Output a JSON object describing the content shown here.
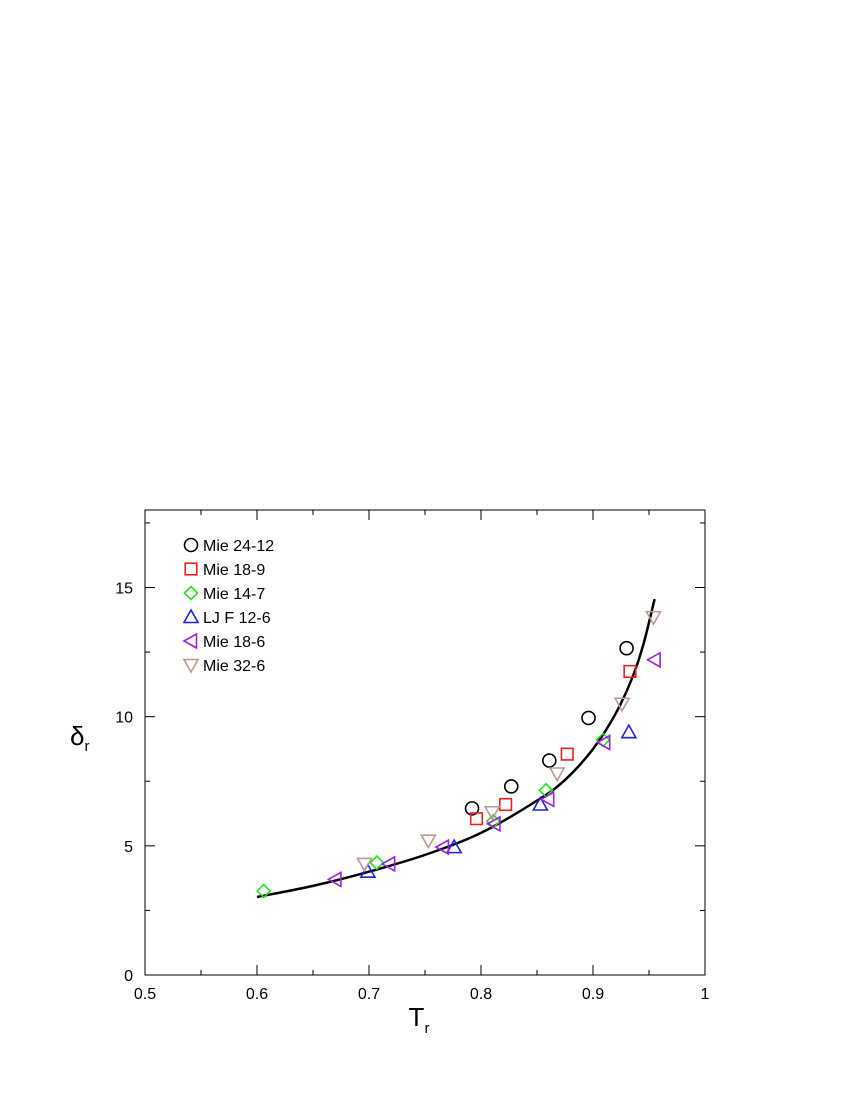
{
  "chart_data": {
    "type": "scatter",
    "xlabel": "T",
    "xlabel_subscript": "r",
    "ylabel": "δ",
    "ylabel_subscript": "r",
    "xlim": [
      0.5,
      1.0
    ],
    "ylim": [
      0,
      18
    ],
    "xticks": [
      "0.5",
      "0.6",
      "0.7",
      "0.8",
      "0.9",
      "1"
    ],
    "yticks": [
      "0",
      "5",
      "10",
      "15"
    ],
    "grid": false,
    "legend_position": "top-left",
    "series": [
      {
        "name": "Mie 24-12",
        "marker": "circle",
        "color": "#000000",
        "points": [
          [
            0.792,
            6.45
          ],
          [
            0.827,
            7.3
          ],
          [
            0.861,
            8.3
          ],
          [
            0.896,
            9.95
          ],
          [
            0.93,
            12.65
          ]
        ]
      },
      {
        "name": "Mie 18-9",
        "marker": "square",
        "color": "#e8211e",
        "points": [
          [
            0.796,
            6.05
          ],
          [
            0.822,
            6.6
          ],
          [
            0.877,
            8.55
          ],
          [
            0.933,
            11.75
          ]
        ]
      },
      {
        "name": "Mie 14-7",
        "marker": "diamond",
        "color": "#22e01d",
        "points": [
          [
            0.606,
            3.25
          ],
          [
            0.707,
            4.35
          ],
          [
            0.811,
            5.95
          ],
          [
            0.858,
            7.15
          ],
          [
            0.909,
            9.1
          ]
        ]
      },
      {
        "name": "LJ F 12-6",
        "marker": "triangle-up",
        "color": "#1f1fe0",
        "points": [
          [
            0.699,
            4.0
          ],
          [
            0.776,
            4.95
          ],
          [
            0.853,
            6.6
          ],
          [
            0.932,
            9.4
          ]
        ]
      },
      {
        "name": "Mie 18-6",
        "marker": "triangle-left",
        "color": "#9b22d8",
        "points": [
          [
            0.67,
            3.7
          ],
          [
            0.718,
            4.3
          ],
          [
            0.766,
            4.95
          ],
          [
            0.812,
            5.85
          ],
          [
            0.86,
            6.8
          ],
          [
            0.91,
            9.0
          ],
          [
            0.955,
            12.2
          ]
        ]
      },
      {
        "name": "Mie 32-6",
        "marker": "triangle-down",
        "color": "#b89a92",
        "points": [
          [
            0.696,
            4.3
          ],
          [
            0.753,
            5.2
          ],
          [
            0.81,
            6.3
          ],
          [
            0.868,
            7.8
          ],
          [
            0.926,
            10.5
          ],
          [
            0.954,
            13.85
          ]
        ]
      }
    ],
    "fit_curve": {
      "color": "#000000",
      "points": [
        [
          0.6,
          3.02
        ],
        [
          0.65,
          3.45
        ],
        [
          0.7,
          4.0
        ],
        [
          0.75,
          4.65
        ],
        [
          0.8,
          5.5
        ],
        [
          0.85,
          6.75
        ],
        [
          0.875,
          7.55
        ],
        [
          0.9,
          8.75
        ],
        [
          0.92,
          10.1
        ],
        [
          0.935,
          11.5
        ],
        [
          0.945,
          12.8
        ],
        [
          0.955,
          14.55
        ]
      ]
    }
  }
}
